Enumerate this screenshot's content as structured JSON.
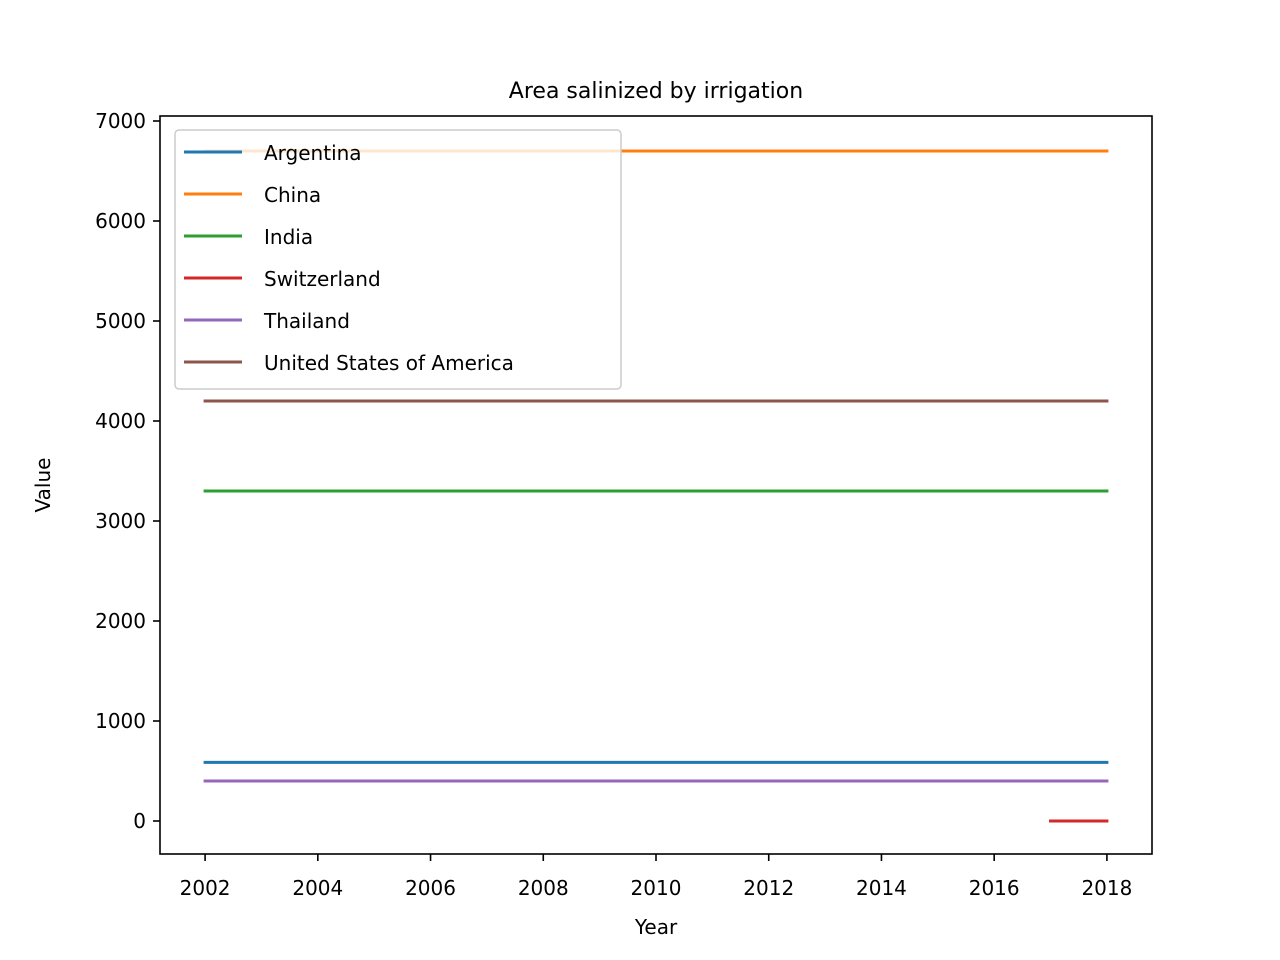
{
  "chart_data": {
    "type": "line",
    "title": "Area salinized by irrigation",
    "xlabel": "Year",
    "ylabel": "Value",
    "xlim": [
      2001.2,
      2018.8
    ],
    "ylim": [
      -330,
      7050
    ],
    "xticks": [
      2002,
      2004,
      2006,
      2008,
      2010,
      2012,
      2014,
      2016,
      2018
    ],
    "yticks": [
      0,
      1000,
      2000,
      3000,
      4000,
      5000,
      6000,
      7000
    ],
    "grid": false,
    "legend_position": "top-left",
    "series": [
      {
        "name": "Argentina",
        "color": "#1f77b4",
        "x": [
          2002,
          2018
        ],
        "y": [
          586,
          586
        ]
      },
      {
        "name": "China",
        "color": "#ff7f0e",
        "x": [
          2002,
          2018
        ],
        "y": [
          6700,
          6700
        ]
      },
      {
        "name": "India",
        "color": "#2ca02c",
        "x": [
          2002,
          2018
        ],
        "y": [
          3300,
          3300
        ]
      },
      {
        "name": "Switzerland",
        "color": "#d62728",
        "x": [
          2017,
          2018
        ],
        "y": [
          0,
          0
        ]
      },
      {
        "name": "Thailand",
        "color": "#9467bd",
        "x": [
          2002,
          2018
        ],
        "y": [
          400,
          400
        ]
      },
      {
        "name": "United States of America",
        "color": "#8c564b",
        "x": [
          2002,
          2018
        ],
        "y": [
          4200,
          4200
        ]
      }
    ]
  }
}
